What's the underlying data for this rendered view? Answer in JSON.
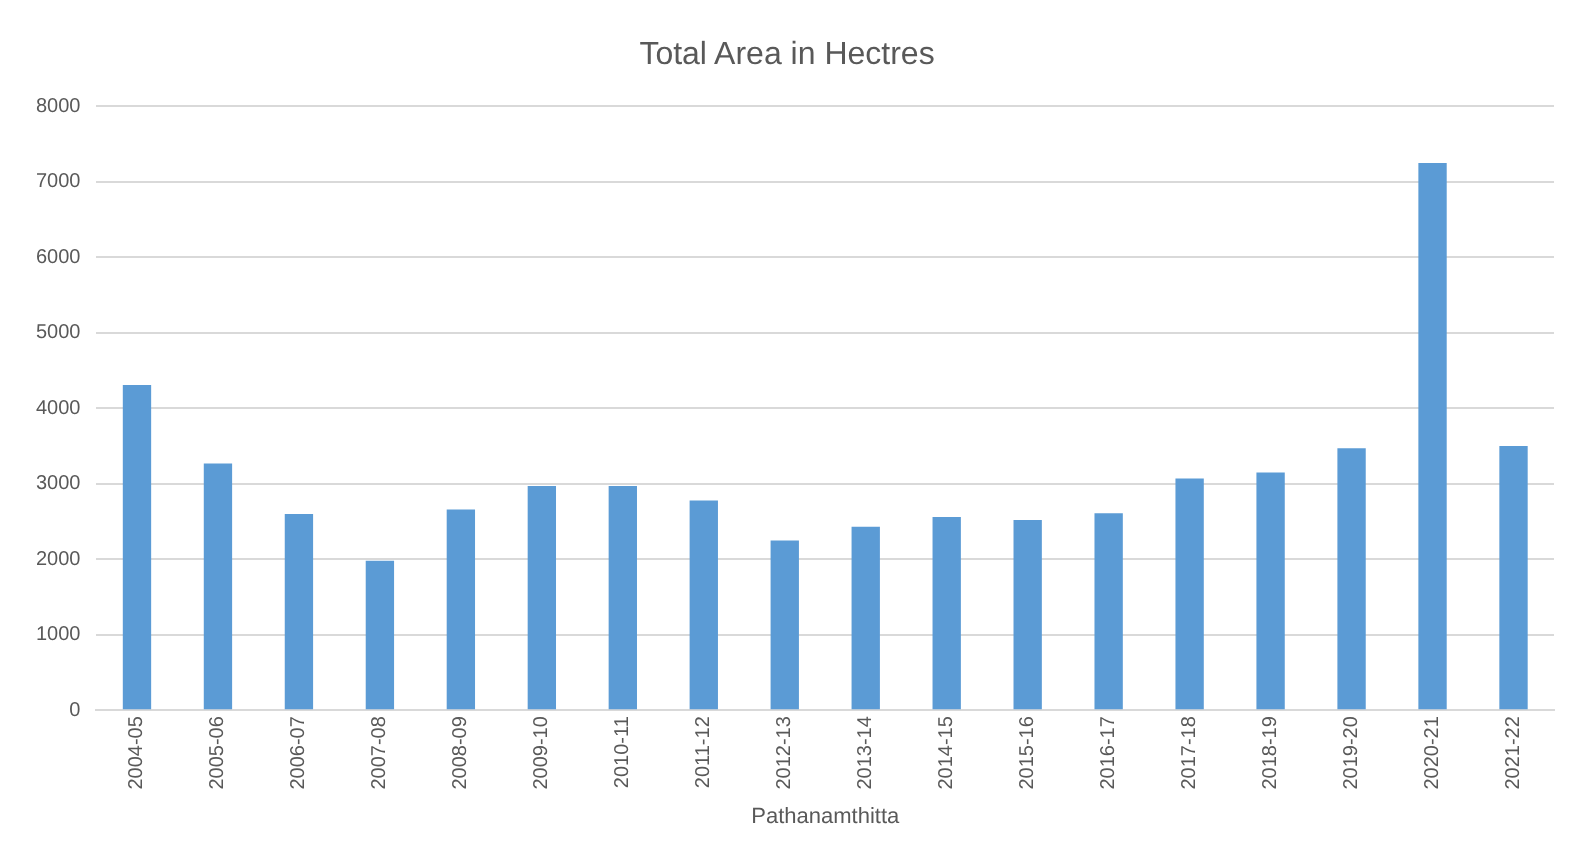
{
  "chart_data": {
    "type": "bar",
    "title": "Total Area in Hectres",
    "xlabel": "Pathanamthitta",
    "categories": [
      "2004-05",
      "2005-06",
      "2006-07",
      "2007-08",
      "2008-09",
      "2009-10",
      "2010-11",
      "2011-12",
      "2012-13",
      "2013-14",
      "2014-15",
      "2015-16",
      "2016-17",
      "2017-18",
      "2018-19",
      "2019-20",
      "2020-21",
      "2021-22"
    ],
    "values": [
      4310,
      3270,
      2600,
      1980,
      2660,
      2970,
      2970,
      2780,
      2250,
      2430,
      2560,
      2520,
      2610,
      3070,
      3150,
      3470,
      7250,
      3500
    ],
    "color": "#5b9bd5",
    "ylim": [
      0,
      8000
    ],
    "yticks": [
      0,
      1000,
      2000,
      3000,
      4000,
      5000,
      6000,
      7000,
      8000
    ],
    "grid": "y"
  }
}
